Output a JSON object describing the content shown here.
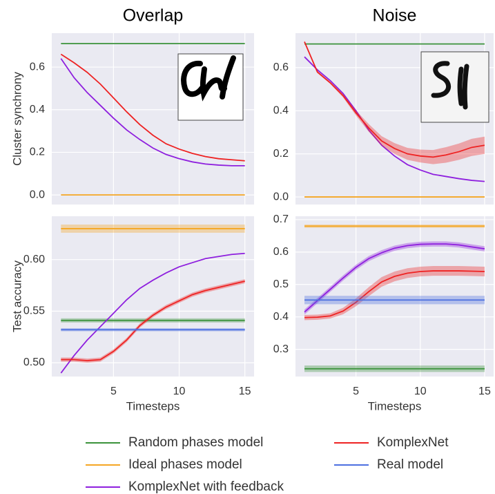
{
  "chart_data": [
    {
      "type": "line",
      "title": "Overlap",
      "ylabel": "Cluster synchrony",
      "x": [
        1,
        2,
        3,
        4,
        5,
        6,
        7,
        8,
        9,
        10,
        11,
        12,
        13,
        14,
        15
      ],
      "xlim": [
        0.3,
        15.7
      ],
      "xticks": [
        5,
        10,
        15
      ],
      "ylim": [
        -0.045,
        0.759
      ],
      "yticks": [
        {
          "value": 0,
          "label": "0.0"
        },
        {
          "value": 0.2,
          "label": "0.2"
        },
        {
          "value": 0.4,
          "label": "0.4"
        },
        {
          "value": 0.6,
          "label": "0.6"
        }
      ],
      "grid": true,
      "series": [
        {
          "color": "#3a923a",
          "values": [
            0.71,
            0.71,
            0.71,
            0.71,
            0.71,
            0.71,
            0.71,
            0.71,
            0.71,
            0.71,
            0.71,
            0.71,
            0.71,
            0.71,
            0.71
          ]
        },
        {
          "color": "#f5a623",
          "values": [
            0,
            0,
            0,
            0,
            0,
            0,
            0,
            0,
            0,
            0,
            0,
            0,
            0,
            0,
            0
          ]
        },
        {
          "color": "#8e1fde",
          "values": [
            0.64,
            0.55,
            0.48,
            0.42,
            0.36,
            0.305,
            0.26,
            0.22,
            0.19,
            0.17,
            0.155,
            0.145,
            0.14,
            0.137,
            0.137
          ]
        },
        {
          "color": "#ee2222",
          "values": [
            0.66,
            0.62,
            0.575,
            0.52,
            0.455,
            0.39,
            0.33,
            0.28,
            0.24,
            0.215,
            0.195,
            0.18,
            0.17,
            0.165,
            0.16
          ]
        }
      ]
    },
    {
      "type": "line",
      "title": "Noise",
      "x": [
        1,
        2,
        3,
        4,
        5,
        6,
        7,
        8,
        9,
        10,
        11,
        12,
        13,
        14,
        15
      ],
      "xlim": [
        0.3,
        15.7
      ],
      "xticks": [
        5,
        10,
        15
      ],
      "ylim": [
        -0.035,
        0.76
      ],
      "yticks": [
        {
          "value": 0,
          "label": "0.0"
        },
        {
          "value": 0.2,
          "label": "0.2"
        },
        {
          "value": 0.4,
          "label": "0.4"
        },
        {
          "value": 0.6,
          "label": "0.6"
        }
      ],
      "grid": true,
      "series": [
        {
          "color": "#3a923a",
          "values": [
            0.71,
            0.71,
            0.71,
            0.71,
            0.71,
            0.71,
            0.71,
            0.71,
            0.71,
            0.71,
            0.71,
            0.71,
            0.71,
            0.71,
            0.71
          ]
        },
        {
          "color": "#f5a623",
          "values": [
            0,
            0,
            0,
            0,
            0,
            0,
            0,
            0,
            0,
            0,
            0,
            0,
            0,
            0,
            0
          ]
        },
        {
          "color": "#8e1fde",
          "values": [
            0.65,
            0.59,
            0.54,
            0.48,
            0.4,
            0.31,
            0.24,
            0.19,
            0.15,
            0.125,
            0.105,
            0.095,
            0.085,
            0.077,
            0.072
          ]
        },
        {
          "color": "#ee2222",
          "values": [
            0.72,
            0.58,
            0.53,
            0.47,
            0.39,
            0.32,
            0.26,
            0.225,
            0.2,
            0.19,
            0.185,
            0.195,
            0.21,
            0.23,
            0.24
          ],
          "errors": [
            0.005,
            0.005,
            0.005,
            0.008,
            0.012,
            0.018,
            0.022,
            0.025,
            0.028,
            0.03,
            0.033,
            0.036,
            0.038,
            0.04,
            0.04
          ]
        }
      ]
    },
    {
      "type": "line",
      "ylabel": "Test accuracy",
      "xlabel": "Timesteps",
      "x": [
        1,
        2,
        3,
        4,
        5,
        6,
        7,
        8,
        9,
        10,
        11,
        12,
        13,
        14,
        15
      ],
      "xlim": [
        0.3,
        15.7
      ],
      "xticks": [
        5,
        10,
        15
      ],
      "ylim": [
        0.4866,
        0.642
      ],
      "yticks": [
        {
          "value": 0.5,
          "label": "0.50"
        },
        {
          "value": 0.55,
          "label": "0.55"
        },
        {
          "value": 0.6,
          "label": "0.60"
        }
      ],
      "grid": true,
      "series": [
        {
          "name": "Random phases model",
          "color": "#3a923a",
          "values": [
            0.541,
            0.541,
            0.541,
            0.541,
            0.541,
            0.541,
            0.541,
            0.541,
            0.541,
            0.541,
            0.541,
            0.541,
            0.541,
            0.541,
            0.541
          ],
          "errors": [
            0.002,
            0.002,
            0.002,
            0.002,
            0.002,
            0.002,
            0.002,
            0.002,
            0.002,
            0.002,
            0.002,
            0.002,
            0.002,
            0.002,
            0.002
          ]
        },
        {
          "name": "Ideal phases model",
          "color": "#f5a623",
          "values": [
            0.63,
            0.63,
            0.63,
            0.63,
            0.63,
            0.63,
            0.63,
            0.63,
            0.63,
            0.63,
            0.63,
            0.63,
            0.63,
            0.63,
            0.63
          ],
          "errors": [
            0.004,
            0.004,
            0.004,
            0.004,
            0.004,
            0.004,
            0.004,
            0.004,
            0.004,
            0.004,
            0.004,
            0.004,
            0.004,
            0.004,
            0.004
          ]
        },
        {
          "name": "KomplexNet with feedback",
          "color": "#8e1fde",
          "values": [
            0.49,
            0.507,
            0.522,
            0.535,
            0.548,
            0.561,
            0.572,
            0.58,
            0.587,
            0.593,
            0.597,
            0.601,
            0.603,
            0.605,
            0.606
          ]
        },
        {
          "name": "KomplexNet",
          "color": "#ee2222",
          "values": [
            0.503,
            0.503,
            0.502,
            0.503,
            0.511,
            0.522,
            0.536,
            0.546,
            0.554,
            0.56,
            0.566,
            0.57,
            0.573,
            0.576,
            0.579
          ],
          "errors": [
            0.002,
            0.002,
            0.002,
            0.002,
            0.002,
            0.002,
            0.002,
            0.002,
            0.002,
            0.002,
            0.002,
            0.002,
            0.002,
            0.002,
            0.002
          ]
        },
        {
          "name": "Real model",
          "color": "#4c6fe0",
          "values": [
            0.532,
            0.532,
            0.532,
            0.532,
            0.532,
            0.532,
            0.532,
            0.532,
            0.532,
            0.532,
            0.532,
            0.532,
            0.532,
            0.532,
            0.532
          ],
          "errors": [
            0.0015,
            0.0015,
            0.0015,
            0.0015,
            0.0015,
            0.0015,
            0.0015,
            0.0015,
            0.0015,
            0.0015,
            0.0015,
            0.0015,
            0.0015,
            0.0015,
            0.0015
          ]
        }
      ]
    },
    {
      "type": "line",
      "xlabel": "Timesteps",
      "x": [
        1,
        2,
        3,
        4,
        5,
        6,
        7,
        8,
        9,
        10,
        11,
        12,
        13,
        14,
        15
      ],
      "xlim": [
        0.3,
        15.7
      ],
      "xticks": [
        5,
        10,
        15
      ],
      "ylim": [
        0.216,
        0.7105
      ],
      "yticks": [
        0.3,
        0.4,
        0.5,
        0.6,
        0.7
      ],
      "grid": true,
      "series": [
        {
          "color": "#3a923a",
          "values": [
            0.24,
            0.24,
            0.24,
            0.24,
            0.24,
            0.24,
            0.24,
            0.24,
            0.24,
            0.24,
            0.24,
            0.24,
            0.24,
            0.24,
            0.24
          ],
          "errors": [
            0.01,
            0.01,
            0.01,
            0.01,
            0.01,
            0.01,
            0.01,
            0.01,
            0.01,
            0.01,
            0.01,
            0.01,
            0.01,
            0.01,
            0.01
          ]
        },
        {
          "color": "#f5a623",
          "values": [
            0.68,
            0.68,
            0.68,
            0.68,
            0.68,
            0.68,
            0.68,
            0.68,
            0.68,
            0.68,
            0.68,
            0.68,
            0.68,
            0.68,
            0.68
          ],
          "errors": [
            0.005,
            0.005,
            0.005,
            0.005,
            0.005,
            0.005,
            0.005,
            0.005,
            0.005,
            0.005,
            0.005,
            0.005,
            0.005,
            0.005,
            0.005
          ]
        },
        {
          "color": "#8e1fde",
          "values": [
            0.415,
            0.45,
            0.485,
            0.52,
            0.553,
            0.58,
            0.598,
            0.612,
            0.62,
            0.624,
            0.625,
            0.625,
            0.622,
            0.616,
            0.61
          ],
          "errors": [
            0.008,
            0.008,
            0.008,
            0.008,
            0.008,
            0.008,
            0.008,
            0.008,
            0.008,
            0.008,
            0.008,
            0.008,
            0.008,
            0.008,
            0.008
          ]
        },
        {
          "color": "#ee2222",
          "values": [
            0.398,
            0.399,
            0.403,
            0.418,
            0.445,
            0.478,
            0.508,
            0.525,
            0.535,
            0.54,
            0.542,
            0.542,
            0.542,
            0.541,
            0.54
          ],
          "errors": [
            0.008,
            0.008,
            0.008,
            0.01,
            0.012,
            0.014,
            0.015,
            0.015,
            0.015,
            0.015,
            0.015,
            0.015,
            0.015,
            0.015,
            0.015
          ]
        },
        {
          "color": "#4c6fe0",
          "values": [
            0.452,
            0.452,
            0.452,
            0.452,
            0.452,
            0.452,
            0.452,
            0.452,
            0.452,
            0.452,
            0.452,
            0.452,
            0.452,
            0.452,
            0.452
          ],
          "errors": [
            0.013,
            0.013,
            0.013,
            0.013,
            0.013,
            0.013,
            0.013,
            0.013,
            0.013,
            0.013,
            0.013,
            0.013,
            0.013,
            0.013,
            0.013
          ]
        }
      ]
    }
  ]
}
